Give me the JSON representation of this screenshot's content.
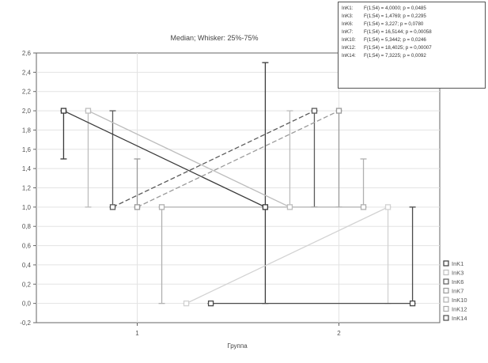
{
  "chart_data": {
    "type": "box",
    "title": "Median; Whisker: 25%-75%",
    "xlabel": "Группа",
    "ylabel": "",
    "xlim": [
      0.5,
      2.5
    ],
    "ylim": [
      -0.2,
      2.6
    ],
    "y_ticks": [
      "-0,2",
      "0,0",
      "0,2",
      "0,4",
      "0,6",
      "0,8",
      "1,0",
      "1,2",
      "1,4",
      "1,6",
      "1,8",
      "2,0",
      "2,2",
      "2,4",
      "2,6"
    ],
    "x_ticks": [
      "1",
      "2"
    ],
    "grid": true,
    "legend_position": "bottom-right",
    "series": [
      {
        "name": "InK1",
        "color": "#3a3a3a",
        "line": "solid",
        "marker": "square",
        "points": [
          {
            "x": 1,
            "median": 2.0,
            "q1": 1.5,
            "q3": 2.0
          },
          {
            "x": 2,
            "median": 1.0,
            "q1": 0.0,
            "q3": 2.5
          }
        ]
      },
      {
        "name": "InK3",
        "color": "#bdbdbd",
        "line": "solid",
        "marker": "square",
        "points": [
          {
            "x": 1,
            "median": 2.0,
            "q1": 1.0,
            "q3": 2.0
          },
          {
            "x": 2,
            "median": 1.0,
            "q1": 1.0,
            "q3": 2.0
          }
        ]
      },
      {
        "name": "InK6",
        "color": "#5a5a5a",
        "line": "dashed",
        "marker": "square",
        "points": [
          {
            "x": 1,
            "median": 1.0,
            "q1": 1.0,
            "q3": 2.0
          },
          {
            "x": 2,
            "median": 2.0,
            "q1": 1.0,
            "q3": 2.0
          }
        ]
      },
      {
        "name": "InK7",
        "color": "#9a9a9a",
        "line": "dashed",
        "marker": "square",
        "points": [
          {
            "x": 1,
            "median": 1.0,
            "q1": 1.0,
            "q3": 1.5
          },
          {
            "x": 2,
            "median": 2.0,
            "q1": 1.0,
            "q3": 2.0
          }
        ]
      },
      {
        "name": "InK10",
        "color": "#b0b0b0",
        "line": "solid",
        "marker": "square",
        "points": [
          {
            "x": 1,
            "median": 1.0,
            "q1": 0.0,
            "q3": 1.0
          },
          {
            "x": 2,
            "median": 1.0,
            "q1": 1.0,
            "q3": 1.5
          }
        ]
      },
      {
        "name": "InK12",
        "color": "#d2d2d2",
        "line": "solid",
        "marker": "square",
        "points": [
          {
            "x": 1,
            "median": 0.0,
            "q1": 0.0,
            "q3": 0.0
          },
          {
            "x": 2,
            "median": 1.0,
            "q1": 0.0,
            "q3": 1.0
          }
        ]
      },
      {
        "name": "InK14",
        "color": "#4a4a4a",
        "line": "solid",
        "marker": "square",
        "points": [
          {
            "x": 1,
            "median": 0.0,
            "q1": 0.0,
            "q3": 0.0
          },
          {
            "x": 2,
            "median": 0.0,
            "q1": 0.0,
            "q3": 1.0
          }
        ]
      }
    ],
    "stats_box": [
      {
        "var": "InK1:",
        "text": "F(1;54) = 4,0000; p = 0,0485"
      },
      {
        "var": "InK3:",
        "text": "F(1;54) = 1,4769; p = 0,2295"
      },
      {
        "var": "InK6:",
        "text": "F(1;54) = 3,227; p = 0,0780"
      },
      {
        "var": "InK7:",
        "text": "F(1;54) = 16,5144; p = 0,00058"
      },
      {
        "var": "InK10:",
        "text": "F(1;54) = 5,3442; p = 0,0246"
      },
      {
        "var": "InK12:",
        "text": "F(1;54) = 18,4025; p = 0,00007"
      },
      {
        "var": "InK14:",
        "text": "F(1;54) = 7,3225; p = 0,0092"
      }
    ]
  }
}
